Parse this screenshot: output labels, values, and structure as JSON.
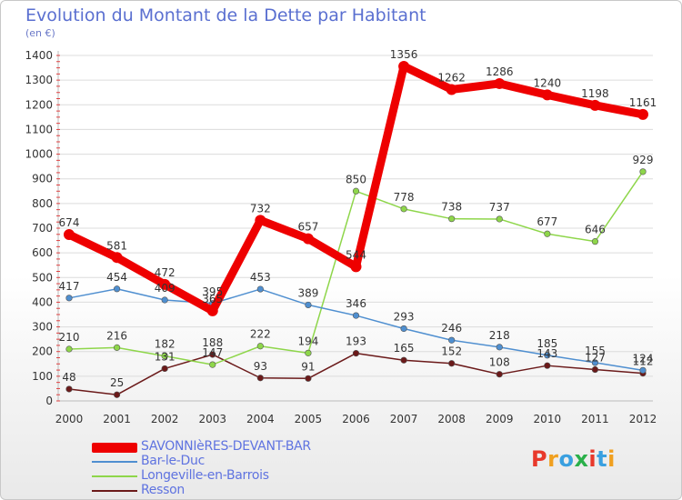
{
  "header": {
    "title": "Evolution du Montant de la Dette par Habitant",
    "unit": "(en €)"
  },
  "logo": {
    "text": "Proxiti",
    "colors": [
      "#e8392b",
      "#f0a020",
      "#3aa0e0",
      "#2ab04a",
      "#e8392b",
      "#3aa0e0",
      "#f0a020"
    ]
  },
  "chart_data": {
    "type": "line",
    "title": "Evolution du Montant de la Dette par Habitant",
    "subtitle": "(en €)",
    "xlabel": "",
    "ylabel": "",
    "x": [
      "2000",
      "2001",
      "2002",
      "2003",
      "2004",
      "2005",
      "2006",
      "2007",
      "2008",
      "2009",
      "2010",
      "2011",
      "2012"
    ],
    "ylim": [
      0,
      1400
    ],
    "yticks": [
      0,
      100,
      200,
      300,
      400,
      500,
      600,
      700,
      800,
      900,
      1000,
      1100,
      1200,
      1300,
      1400
    ],
    "grid": true,
    "legend_position": "bottom-left",
    "series": [
      {
        "name": "SAVONNIèRES-DEVANT-BAR",
        "color": "#ee0000",
        "values": [
          674,
          581,
          472,
          365,
          732,
          657,
          544,
          1356,
          1262,
          1286,
          1240,
          1198,
          1161
        ]
      },
      {
        "name": "Bar-le-Duc",
        "color": "#4f8fd0",
        "values": [
          417,
          454,
          409,
          395,
          453,
          389,
          346,
          293,
          246,
          218,
          185,
          155,
          124
        ]
      },
      {
        "name": "Longeville-en-Barrois",
        "color": "#8ed64a",
        "values": [
          210,
          216,
          182,
          147,
          222,
          194,
          850,
          778,
          738,
          737,
          677,
          646,
          929
        ]
      },
      {
        "name": "Resson",
        "color": "#6b1a1a",
        "values": [
          48,
          25,
          131,
          188,
          93,
          91,
          193,
          165,
          152,
          108,
          143,
          127,
          112
        ]
      }
    ]
  }
}
